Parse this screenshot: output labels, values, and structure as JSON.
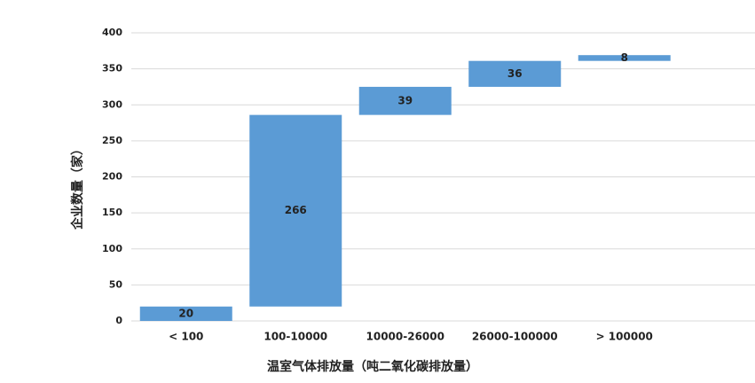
{
  "chart_data": {
    "type": "waterfall",
    "x_label": "温室气体排放量（吨二氧化碳排放量）",
    "y_label": "企业数量（家）",
    "categories": [
      "< 100",
      "100-10000",
      "10000-26000",
      "26000-100000",
      "> 100000"
    ],
    "values": [
      20,
      266,
      39,
      36,
      8
    ],
    "color": "#5b9bd5",
    "ylim": [
      0,
      400
    ],
    "yticks": [
      0,
      50,
      100,
      150,
      200,
      250,
      300,
      350,
      400
    ],
    "grid": true
  }
}
